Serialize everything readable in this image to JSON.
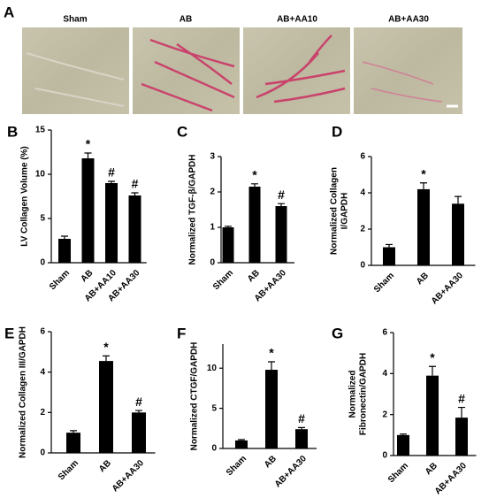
{
  "panel_a": {
    "label": "A",
    "captions": [
      "Sham",
      "AB",
      "AB+AA10",
      "AB+AA30"
    ]
  },
  "chart_data": [
    {
      "type": "bar",
      "label": "B",
      "ylabel": [
        "LV Collagen Volume (%)"
      ],
      "categories": [
        "Sham",
        "AB",
        "AB+AA10",
        "AB+AA30"
      ],
      "values": [
        2.7,
        11.8,
        9.0,
        7.6
      ],
      "errors": [
        0.3,
        0.6,
        0.2,
        0.3
      ],
      "markers": [
        null,
        "*",
        "#",
        "#"
      ],
      "color": "#000000",
      "ylim": [
        0,
        15
      ],
      "yticks": [
        0,
        5,
        10,
        15
      ]
    },
    {
      "type": "bar",
      "label": "C",
      "ylabel": [
        "Normalized TGF-β/GAPDH"
      ],
      "categories": [
        "Sham",
        "AB",
        "AB+AA30"
      ],
      "values": [
        1.0,
        2.15,
        1.6
      ],
      "errors": [
        0.03,
        0.08,
        0.07
      ],
      "markers": [
        null,
        "*",
        "#"
      ],
      "color": "#000000",
      "ylim": [
        0,
        3
      ],
      "yticks": [
        0,
        1,
        2,
        3
      ]
    },
    {
      "type": "bar",
      "label": "D",
      "ylabel": [
        "Normalized Collagen",
        "I/GAPDH"
      ],
      "categories": [
        "Sham",
        "AB",
        "AB+AA30"
      ],
      "values": [
        1.0,
        4.2,
        3.4
      ],
      "errors": [
        0.15,
        0.35,
        0.4
      ],
      "markers": [
        null,
        "*",
        null
      ],
      "color": "#000000",
      "ylim": [
        0,
        6
      ],
      "yticks": [
        0,
        2,
        4,
        6
      ]
    },
    {
      "type": "bar",
      "label": "E",
      "ylabel": [
        "Normalized Collagen III/GAPDH"
      ],
      "categories": [
        "Sham",
        "AB",
        "AB+AA30"
      ],
      "values": [
        1.0,
        4.55,
        2.0
      ],
      "errors": [
        0.1,
        0.25,
        0.1
      ],
      "markers": [
        null,
        "*",
        "#"
      ],
      "color": "#000000",
      "ylim": [
        0,
        6
      ],
      "yticks": [
        0,
        2,
        4,
        6
      ]
    },
    {
      "type": "bar",
      "label": "F",
      "ylabel": [
        "Normalized CTGF/GAPDH"
      ],
      "categories": [
        "Sham",
        "AB",
        "AB+AA30"
      ],
      "values": [
        1.0,
        9.8,
        2.4
      ],
      "errors": [
        0.1,
        1.0,
        0.2
      ],
      "markers": [
        null,
        "*",
        "#"
      ],
      "color": "#000000",
      "ylim": [
        0,
        13
      ],
      "yticks": [
        0,
        5,
        10
      ]
    },
    {
      "type": "bar",
      "label": "G",
      "ylabel": [
        "Normalized",
        "Fibronectin/GAPDH"
      ],
      "categories": [
        "Sham",
        "AB",
        "AB+AA30"
      ],
      "values": [
        1.0,
        3.9,
        1.85
      ],
      "errors": [
        0.05,
        0.45,
        0.5
      ],
      "markers": [
        null,
        "*",
        "#"
      ],
      "color": "#000000",
      "ylim": [
        0,
        6
      ],
      "yticks": [
        0,
        2,
        4,
        6
      ]
    }
  ]
}
